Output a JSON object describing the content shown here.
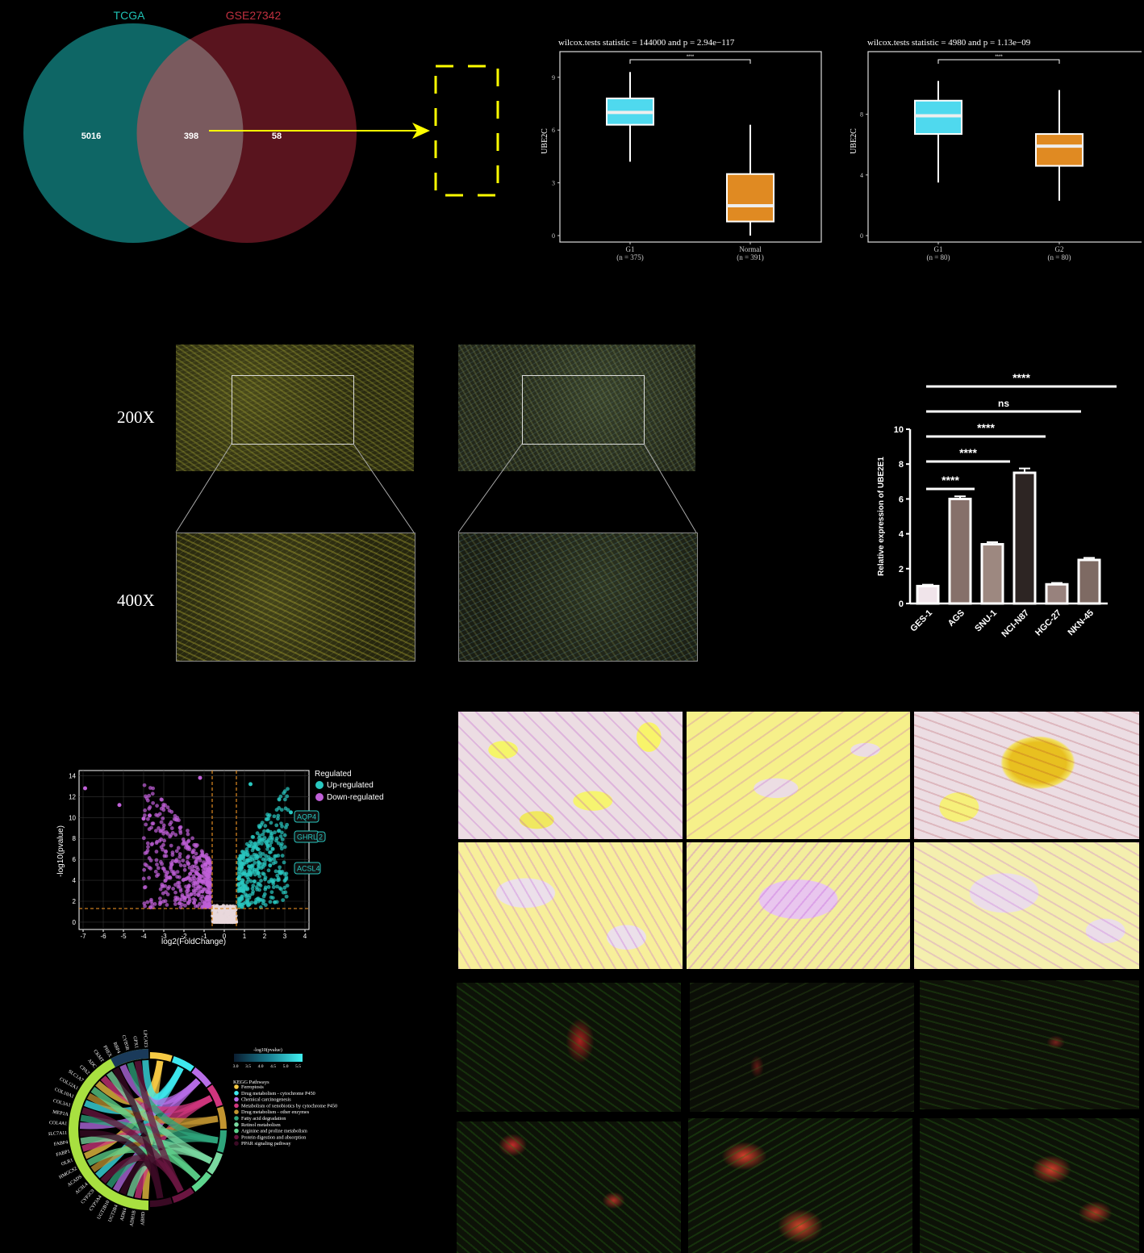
{
  "venn": {
    "left_label": "TCGA",
    "right_label": "GSE27342",
    "left_only": "5016",
    "both": "398",
    "right_only": "58",
    "left_color": "#0f6c6a",
    "right_color": "#5e1520",
    "left_label_color": "#1fc1b4",
    "right_label_color": "#c0303f"
  },
  "boxplot1": {
    "title": "wilcox.tests statistic = 144000 and p = 2.94e−117",
    "ylabel": "UBE2C",
    "sig": "****",
    "yticks": [
      "0",
      "3",
      "6",
      "9"
    ],
    "groups": [
      {
        "name": "G1",
        "n": "(n = 375)",
        "color": "#4fd9ee",
        "min": 4.2,
        "q1": 6.3,
        "median": 7.0,
        "q3": 7.8,
        "max": 9.3
      },
      {
        "name": "Normal",
        "n": "(n = 391)",
        "color": "#e08a22",
        "min": 0.0,
        "q1": 0.8,
        "median": 1.7,
        "q3": 3.5,
        "max": 6.3
      }
    ]
  },
  "boxplot2": {
    "title": "wilcox.tests statistic = 4980 and p = 1.13e−09",
    "ylabel": "UBE2C",
    "sig": "****",
    "yticks": [
      "0",
      "4",
      "8"
    ],
    "groups": [
      {
        "name": "G1",
        "n": "(n = 80)",
        "color": "#4fd9ee",
        "min": 3.5,
        "q1": 6.7,
        "median": 7.9,
        "q3": 8.9,
        "max": 10.2
      },
      {
        "name": "G2",
        "n": "(n = 80)",
        "color": "#e08a22",
        "min": 2.3,
        "q1": 4.6,
        "median": 5.9,
        "q3": 6.7,
        "max": 9.6
      }
    ]
  },
  "magnification": {
    "low": "200X",
    "high": "400X"
  },
  "barchart": {
    "ylabel": "Relative expression of UBE2E1",
    "yticks": [
      "0",
      "2",
      "4",
      "6",
      "8",
      "10"
    ],
    "bars": [
      {
        "label": "GES-1",
        "value": 1.0,
        "err": 0.08,
        "color": "#f0e4ea"
      },
      {
        "label": "AGS",
        "value": 6.0,
        "err": 0.15,
        "color": "#86706a"
      },
      {
        "label": "SNU-1",
        "value": 3.4,
        "err": 0.12,
        "color": "#9d8880"
      },
      {
        "label": "NCI-N87",
        "value": 7.5,
        "err": 0.25,
        "color": "#2d2523"
      },
      {
        "label": "HGC-27",
        "value": 1.1,
        "err": 0.08,
        "color": "#98827d"
      },
      {
        "label": "NKN-45",
        "value": 2.5,
        "err": 0.12,
        "color": "#7e6a63"
      }
    ],
    "comparisons": [
      {
        "label": "****",
        "from": 0,
        "to": 1
      },
      {
        "label": "****",
        "from": 0,
        "to": 2
      },
      {
        "label": "****",
        "from": 0,
        "to": 3
      },
      {
        "label": "ns",
        "from": 0,
        "to": 4
      },
      {
        "label": "****",
        "from": 0,
        "to": 5
      }
    ]
  },
  "volcano": {
    "xlabel": "log2(FoldChange)",
    "ylabel": "-log10(pvalue)",
    "xticks": [
      "-7",
      "-6",
      "-5",
      "-4",
      "-3",
      "-2",
      "-1",
      "0",
      "1",
      "2",
      "3",
      "4"
    ],
    "yticks": [
      "0",
      "2",
      "4",
      "6",
      "8",
      "10",
      "12",
      "14"
    ],
    "legend_title": "Regulated",
    "legend_up": "Up-regulated",
    "legend_down": "Down-regulated",
    "up_color": "#29c7c0",
    "down_color": "#c060d8",
    "labels": [
      "AQP4",
      "GHRL",
      "2",
      "ACSL4"
    ]
  },
  "chord": {
    "scale_title": "-log10(pvalue)",
    "scale_ticks": [
      "3.0",
      "3.5",
      "4.0",
      "4.5",
      "5.0",
      "5.5"
    ],
    "legend_title": "KEGG Pathways",
    "pathways": [
      {
        "name": "Ferroptosis",
        "color": "#f5c944"
      },
      {
        "name": "Drug metabolism - cytochrome P450",
        "color": "#3ee8ef"
      },
      {
        "name": "Chemical carcinogenesis",
        "color": "#b86ee8"
      },
      {
        "name": "Metabolism of xenobiotics by cytochrome P450",
        "color": "#d0357e"
      },
      {
        "name": "Drug metabolism - other enzymes",
        "color": "#c29430"
      },
      {
        "name": "Fatty acid degradation",
        "color": "#2fa57c"
      },
      {
        "name": "Retinol metabolism",
        "color": "#7ad8a0"
      },
      {
        "name": "Arginine and proline metabolism",
        "color": "#5ed58e"
      },
      {
        "name": "Protein digestion and absorption",
        "color": "#6a1540"
      },
      {
        "name": "PPAR signaling pathway",
        "color": "#3a0a24"
      }
    ],
    "genes": [
      "ABHD",
      "ADH1B",
      "ADH4",
      "UGT2B4",
      "UGT2B10",
      "CYP3A4",
      "CYP2C9",
      "ACSL4",
      "ACADS",
      "HMGCS2",
      "OLR1",
      "FABP1",
      "FABP4",
      "SLC7A11",
      "COL4A1",
      "MEP1A",
      "COL3A1",
      "COL10A1",
      "COL12A1",
      "SLC1A7",
      "CPA2",
      "ADC",
      "CKMT",
      "PHEX",
      "RBP4",
      "CYB5R",
      "GPX1",
      "LPCAT3"
    ]
  }
}
